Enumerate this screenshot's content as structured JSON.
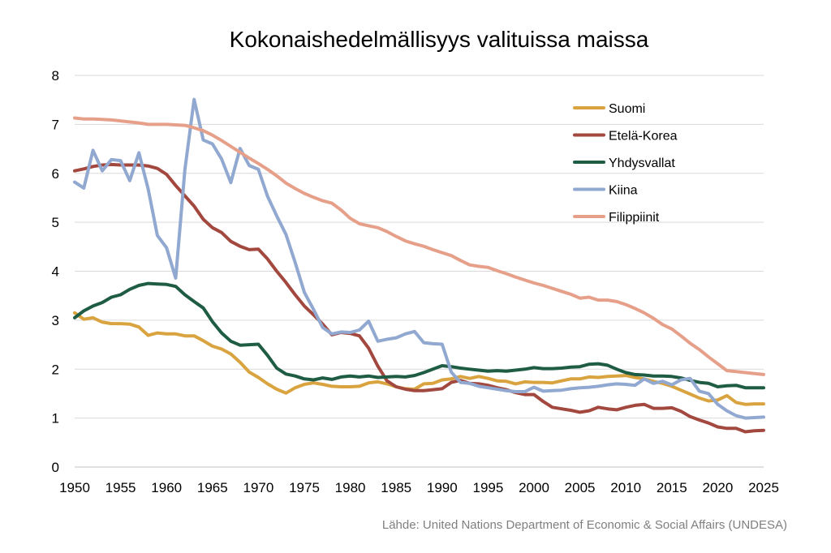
{
  "chart_data": {
    "type": "line",
    "title": "Kokonaishedelmällisyys valituissa maissa",
    "source": "Lähde: United Nations Department of Economic & Social Affairs (UNDESA)",
    "xlabel": "",
    "ylabel": "",
    "xlim": [
      1950,
      2025
    ],
    "ylim": [
      0,
      8
    ],
    "x_ticks": [
      "1950",
      "1955",
      "1960",
      "1965",
      "1970",
      "1975",
      "1980",
      "1985",
      "1990",
      "1995",
      "2000",
      "2005",
      "2010",
      "2015",
      "2020",
      "2025"
    ],
    "y_ticks": [
      "0",
      "1",
      "2",
      "3",
      "4",
      "5",
      "6",
      "7",
      "8"
    ],
    "grid": "horizontal",
    "legend_position": "top-right",
    "x": [
      1950,
      1951,
      1952,
      1953,
      1954,
      1955,
      1956,
      1957,
      1958,
      1959,
      1960,
      1961,
      1962,
      1963,
      1964,
      1965,
      1966,
      1967,
      1968,
      1969,
      1970,
      1971,
      1972,
      1973,
      1974,
      1975,
      1976,
      1977,
      1978,
      1979,
      1980,
      1981,
      1982,
      1983,
      1984,
      1985,
      1986,
      1987,
      1988,
      1989,
      1990,
      1991,
      1992,
      1993,
      1994,
      1995,
      1996,
      1997,
      1998,
      1999,
      2000,
      2001,
      2002,
      2003,
      2004,
      2005,
      2006,
      2007,
      2008,
      2009,
      2010,
      2011,
      2012,
      2013,
      2014,
      2015,
      2016,
      2017,
      2018,
      2019,
      2020,
      2021,
      2022,
      2023,
      2024,
      2025
    ],
    "series": [
      {
        "name": "Suomi",
        "color": "#d9a440",
        "values": [
          3.15,
          3.02,
          3.05,
          2.96,
          2.93,
          2.93,
          2.92,
          2.86,
          2.69,
          2.74,
          2.72,
          2.72,
          2.68,
          2.68,
          2.58,
          2.47,
          2.41,
          2.31,
          2.14,
          1.94,
          1.83,
          1.7,
          1.59,
          1.51,
          1.62,
          1.69,
          1.72,
          1.69,
          1.65,
          1.64,
          1.64,
          1.65,
          1.72,
          1.74,
          1.7,
          1.64,
          1.6,
          1.59,
          1.7,
          1.71,
          1.78,
          1.8,
          1.85,
          1.81,
          1.85,
          1.81,
          1.76,
          1.75,
          1.7,
          1.74,
          1.73,
          1.73,
          1.72,
          1.76,
          1.8,
          1.8,
          1.84,
          1.83,
          1.85,
          1.86,
          1.87,
          1.83,
          1.8,
          1.75,
          1.71,
          1.65,
          1.57,
          1.49,
          1.41,
          1.35,
          1.37,
          1.46,
          1.32,
          1.28,
          1.29,
          1.29
        ]
      },
      {
        "name": "Etelä-Korea",
        "color": "#a2483e",
        "values": [
          6.05,
          6.09,
          6.14,
          6.17,
          6.18,
          6.17,
          6.17,
          6.17,
          6.15,
          6.1,
          5.98,
          5.75,
          5.54,
          5.33,
          5.06,
          4.89,
          4.79,
          4.61,
          4.51,
          4.44,
          4.45,
          4.25,
          4.0,
          3.77,
          3.52,
          3.29,
          3.11,
          2.92,
          2.7,
          2.75,
          2.73,
          2.68,
          2.43,
          2.06,
          1.76,
          1.64,
          1.59,
          1.56,
          1.56,
          1.58,
          1.6,
          1.73,
          1.77,
          1.71,
          1.7,
          1.67,
          1.62,
          1.58,
          1.52,
          1.48,
          1.48,
          1.34,
          1.22,
          1.19,
          1.16,
          1.12,
          1.15,
          1.22,
          1.19,
          1.17,
          1.22,
          1.26,
          1.28,
          1.2,
          1.2,
          1.21,
          1.14,
          1.03,
          0.96,
          0.9,
          0.82,
          0.79,
          0.79,
          0.72,
          0.74,
          0.75
        ]
      },
      {
        "name": "Yhdysvallat",
        "color": "#1f5c44",
        "values": [
          3.05,
          3.19,
          3.29,
          3.36,
          3.47,
          3.52,
          3.63,
          3.71,
          3.75,
          3.74,
          3.73,
          3.69,
          3.52,
          3.38,
          3.25,
          2.97,
          2.74,
          2.57,
          2.49,
          2.5,
          2.51,
          2.28,
          2.02,
          1.9,
          1.86,
          1.8,
          1.78,
          1.82,
          1.79,
          1.84,
          1.86,
          1.84,
          1.86,
          1.83,
          1.84,
          1.85,
          1.84,
          1.87,
          1.93,
          2.0,
          2.07,
          2.05,
          2.02,
          2.0,
          1.98,
          1.96,
          1.97,
          1.96,
          1.98,
          2.0,
          2.03,
          2.01,
          2.01,
          2.02,
          2.04,
          2.05,
          2.1,
          2.11,
          2.08,
          2.0,
          1.93,
          1.89,
          1.88,
          1.86,
          1.86,
          1.85,
          1.82,
          1.77,
          1.73,
          1.71,
          1.64,
          1.66,
          1.67,
          1.62,
          1.62,
          1.62
        ]
      },
      {
        "name": "Kiina",
        "color": "#91a8d0",
        "values": [
          5.82,
          5.7,
          6.47,
          6.05,
          6.28,
          6.26,
          5.85,
          6.42,
          5.68,
          4.73,
          4.48,
          3.86,
          6.07,
          7.51,
          6.68,
          6.6,
          6.29,
          5.81,
          6.51,
          6.16,
          6.08,
          5.53,
          5.13,
          4.75,
          4.18,
          3.57,
          3.22,
          2.85,
          2.72,
          2.76,
          2.75,
          2.8,
          2.98,
          2.57,
          2.61,
          2.64,
          2.72,
          2.77,
          2.54,
          2.52,
          2.51,
          1.94,
          1.73,
          1.71,
          1.65,
          1.62,
          1.59,
          1.56,
          1.54,
          1.54,
          1.63,
          1.55,
          1.56,
          1.57,
          1.6,
          1.62,
          1.63,
          1.65,
          1.68,
          1.7,
          1.69,
          1.67,
          1.8,
          1.71,
          1.75,
          1.68,
          1.78,
          1.81,
          1.55,
          1.5,
          1.28,
          1.15,
          1.05,
          1.0,
          1.01,
          1.02
        ]
      },
      {
        "name": "Filippiinit",
        "color": "#e6a08a",
        "values": [
          7.13,
          7.11,
          7.11,
          7.1,
          7.09,
          7.07,
          7.05,
          7.03,
          7.0,
          7.0,
          7.0,
          6.99,
          6.98,
          6.93,
          6.87,
          6.78,
          6.67,
          6.55,
          6.43,
          6.31,
          6.2,
          6.08,
          5.95,
          5.8,
          5.69,
          5.59,
          5.51,
          5.44,
          5.39,
          5.25,
          5.08,
          4.97,
          4.93,
          4.89,
          4.81,
          4.71,
          4.62,
          4.56,
          4.51,
          4.44,
          4.38,
          4.32,
          4.22,
          4.13,
          4.1,
          4.08,
          4.01,
          3.95,
          3.88,
          3.82,
          3.76,
          3.71,
          3.65,
          3.59,
          3.53,
          3.45,
          3.47,
          3.41,
          3.41,
          3.38,
          3.32,
          3.24,
          3.15,
          3.04,
          2.91,
          2.82,
          2.68,
          2.53,
          2.4,
          2.25,
          2.11,
          1.97,
          1.95,
          1.93,
          1.91,
          1.89
        ]
      }
    ]
  }
}
